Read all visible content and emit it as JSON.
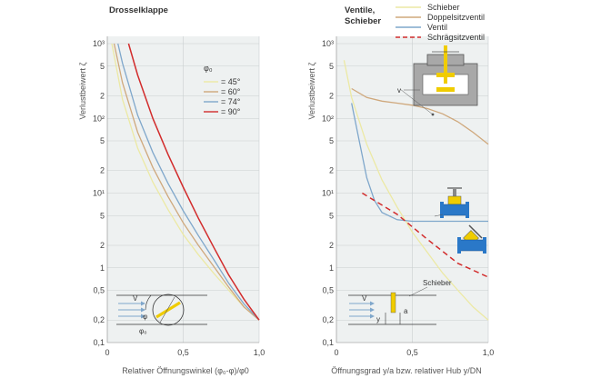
{
  "colors": {
    "yellow": "#ece9a4",
    "tan": "#cfa87c",
    "blue": "#7fa7cb",
    "red": "#d22c2c",
    "panel": "#eef1f1",
    "grid": "#c9cfd0",
    "valve_gray": "#a8a8a8",
    "valve_yellow": "#f0cc00",
    "valve_blue": "#2a78c8"
  },
  "chart_data": [
    {
      "type": "line",
      "panel": "left",
      "title": "Drosselklappe",
      "xlabel": "Relativer Öffnungswinkel (φ₀-φ)/φ0",
      "ylabel": "Verlustbeiwert ζ",
      "yscale": "log",
      "xlim": [
        0,
        1.0
      ],
      "ylim": [
        0.1,
        1000
      ],
      "x_ticks": [
        "0",
        "0,5",
        "1,0"
      ],
      "y_ticks": [
        "10³",
        "5",
        "2",
        "10²",
        "5",
        "2",
        "10¹",
        "5",
        "2",
        "1",
        "0,5",
        "0,2",
        "0,1"
      ],
      "legend_title": "φ₀",
      "series": [
        {
          "name": "= 45°",
          "color": "yellow",
          "points": [
            [
              0.03,
              1000
            ],
            [
              0.1,
              180
            ],
            [
              0.2,
              40
            ],
            [
              0.3,
              14
            ],
            [
              0.4,
              6
            ],
            [
              0.5,
              2.8
            ],
            [
              0.6,
              1.5
            ],
            [
              0.7,
              0.85
            ],
            [
              0.8,
              0.5
            ],
            [
              0.9,
              0.3
            ],
            [
              1.0,
              0.2
            ]
          ]
        },
        {
          "name": "= 60°",
          "color": "tan",
          "points": [
            [
              0.045,
              1000
            ],
            [
              0.1,
              300
            ],
            [
              0.2,
              65
            ],
            [
              0.3,
              22
            ],
            [
              0.4,
              9
            ],
            [
              0.5,
              4
            ],
            [
              0.6,
              2
            ],
            [
              0.7,
              1.05
            ],
            [
              0.8,
              0.55
            ],
            [
              0.9,
              0.3
            ],
            [
              1.0,
              0.2
            ]
          ]
        },
        {
          "name": "= 74°",
          "color": "blue",
          "points": [
            [
              0.07,
              1000
            ],
            [
              0.1,
              550
            ],
            [
              0.2,
              110
            ],
            [
              0.3,
              35
            ],
            [
              0.4,
              13.5
            ],
            [
              0.5,
              5.8
            ],
            [
              0.6,
              2.7
            ],
            [
              0.7,
              1.3
            ],
            [
              0.8,
              0.62
            ],
            [
              0.9,
              0.33
            ],
            [
              1.0,
              0.2
            ]
          ]
        },
        {
          "name": "= 90°",
          "color": "red",
          "points": [
            [
              0.14,
              1000
            ],
            [
              0.2,
              380
            ],
            [
              0.3,
              100
            ],
            [
              0.4,
              33
            ],
            [
              0.5,
              12
            ],
            [
              0.6,
              4.6
            ],
            [
              0.7,
              1.9
            ],
            [
              0.8,
              0.8
            ],
            [
              0.9,
              0.38
            ],
            [
              1.0,
              0.2
            ]
          ]
        }
      ],
      "diagram_labels": [
        "V",
        "φ",
        "φ₀"
      ]
    },
    {
      "type": "line",
      "panel": "right",
      "title": "Ventile, Schieber",
      "xlabel": "Öffnungsgrad y/a bzw. relativer Hub y/DN",
      "ylabel": "Verlustbeiwert ζ",
      "yscale": "log",
      "xlim": [
        0,
        1.0
      ],
      "ylim": [
        0.1,
        1000
      ],
      "x_ticks": [
        "0",
        "0,5",
        "1,0"
      ],
      "y_ticks": [
        "10³",
        "5",
        "2",
        "10²",
        "5",
        "2",
        "10¹",
        "5",
        "2",
        "1",
        "0,5",
        "0,2",
        "0,1"
      ],
      "series": [
        {
          "name": "Schieber",
          "color": "yellow",
          "points": [
            [
              0.05,
              600
            ],
            [
              0.1,
              190
            ],
            [
              0.2,
              45
            ],
            [
              0.3,
              15
            ],
            [
              0.4,
              6.5
            ],
            [
              0.5,
              3
            ],
            [
              0.6,
              1.6
            ],
            [
              0.7,
              0.85
            ],
            [
              0.8,
              0.5
            ],
            [
              0.9,
              0.3
            ],
            [
              1.0,
              0.2
            ]
          ]
        },
        {
          "name": "Doppelsitzventil",
          "color": "tan",
          "points": [
            [
              0.1,
              250
            ],
            [
              0.2,
              190
            ],
            [
              0.3,
              170
            ],
            [
              0.4,
              160
            ],
            [
              0.5,
              150
            ],
            [
              0.6,
              135
            ],
            [
              0.7,
              115
            ],
            [
              0.8,
              90
            ],
            [
              0.9,
              65
            ],
            [
              1.0,
              45
            ]
          ]
        },
        {
          "name": "Ventil",
          "color": "blue",
          "points": [
            [
              0.1,
              160
            ],
            [
              0.15,
              50
            ],
            [
              0.2,
              16
            ],
            [
              0.25,
              8
            ],
            [
              0.3,
              5.5
            ],
            [
              0.4,
              4.4
            ],
            [
              0.5,
              4.2
            ],
            [
              0.7,
              4.2
            ],
            [
              1.0,
              4.2
            ]
          ]
        },
        {
          "name": "Schrägsitzventil",
          "color": "red",
          "dashed": true,
          "points": [
            [
              0.17,
              10
            ],
            [
              0.4,
              5.2
            ],
            [
              0.6,
              2.4
            ],
            [
              0.8,
              1.15
            ],
            [
              1.0,
              0.75
            ]
          ]
        }
      ],
      "annotations": [
        "Schieber",
        "V",
        "v",
        "V",
        "y",
        "a"
      ]
    }
  ]
}
